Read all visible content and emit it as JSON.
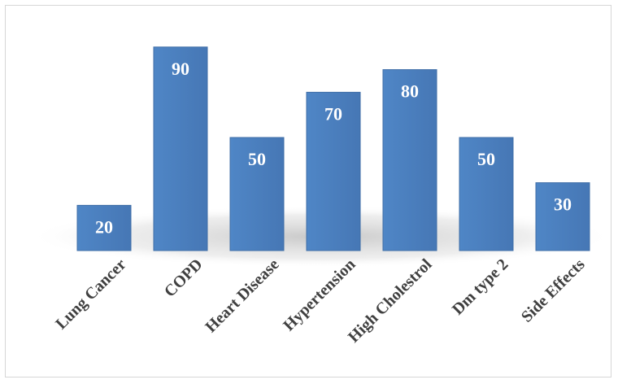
{
  "chart_data": {
    "type": "bar",
    "title": "",
    "xlabel": "",
    "ylabel": "",
    "categories": [
      "Lung Cancer",
      "COPD",
      "Heart Disease",
      "Hypertension",
      "High Cholestrol",
      "Dm type 2",
      "Side Effects"
    ],
    "values": [
      20,
      90,
      50,
      70,
      80,
      50,
      30
    ],
    "ylim": [
      0,
      100
    ],
    "grid": false,
    "legend": "none",
    "bar_color": "#4a7ebb",
    "bar_edge_color": "#3f6ea7",
    "label_color": "#ffffff",
    "tick_label_color": "#404040",
    "data_labels": true
  }
}
